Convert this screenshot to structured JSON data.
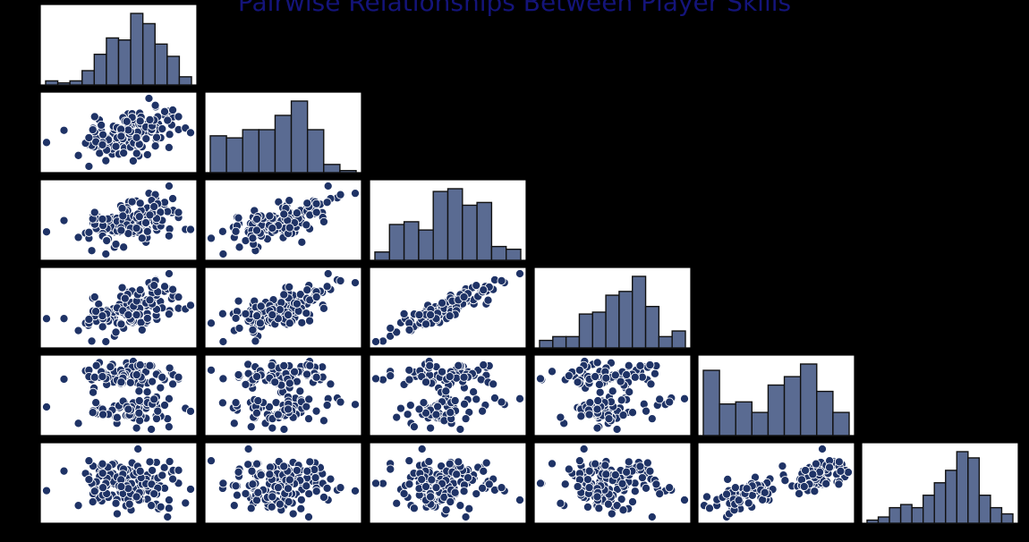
{
  "title": "Pairwise Relationships Between Player Skills",
  "colors": {
    "background": "#000000",
    "panel": "#ffffff",
    "marker": "#1f3366",
    "bar_fill": "#5a6b92",
    "title": "#14147a"
  },
  "chart_data": {
    "type": "scatter",
    "layout": "lower-triangle pair plot with histograms on diagonal",
    "n_variables": 6,
    "n_points": 150,
    "grid": false,
    "histograms": [
      [
        2,
        1,
        2,
        7,
        15,
        23,
        22,
        35,
        30,
        20,
        14,
        4
      ],
      [
        18,
        17,
        21,
        21,
        28,
        35,
        21,
        4,
        1
      ],
      [
        3,
        13,
        14,
        11,
        25,
        26,
        20,
        21,
        5,
        4
      ],
      [
        4,
        6,
        6,
        18,
        19,
        28,
        30,
        38,
        22,
        6,
        9
      ],
      [
        31,
        15,
        16,
        11,
        24,
        28,
        34,
        21,
        11
      ],
      [
        1,
        2,
        5,
        6,
        5,
        9,
        13,
        17,
        23,
        21,
        9,
        5,
        3
      ]
    ],
    "pairs": [
      {
        "row": 1,
        "col": 0,
        "relationship": "weak positive"
      },
      {
        "row": 2,
        "col": 0,
        "relationship": "weak positive"
      },
      {
        "row": 2,
        "col": 1,
        "relationship": "positive"
      },
      {
        "row": 3,
        "col": 0,
        "relationship": "positive"
      },
      {
        "row": 3,
        "col": 1,
        "relationship": "positive"
      },
      {
        "row": 3,
        "col": 2,
        "relationship": "strong positive"
      },
      {
        "row": 4,
        "col": 0,
        "relationship": "none / bimodal"
      },
      {
        "row": 4,
        "col": 1,
        "relationship": "none / bimodal"
      },
      {
        "row": 4,
        "col": 2,
        "relationship": "none / bimodal"
      },
      {
        "row": 4,
        "col": 3,
        "relationship": "none / bimodal"
      },
      {
        "row": 5,
        "col": 0,
        "relationship": "none"
      },
      {
        "row": 5,
        "col": 1,
        "relationship": "none"
      },
      {
        "row": 5,
        "col": 2,
        "relationship": "none"
      },
      {
        "row": 5,
        "col": 3,
        "relationship": "none"
      },
      {
        "row": 5,
        "col": 4,
        "relationship": "positive"
      }
    ]
  }
}
